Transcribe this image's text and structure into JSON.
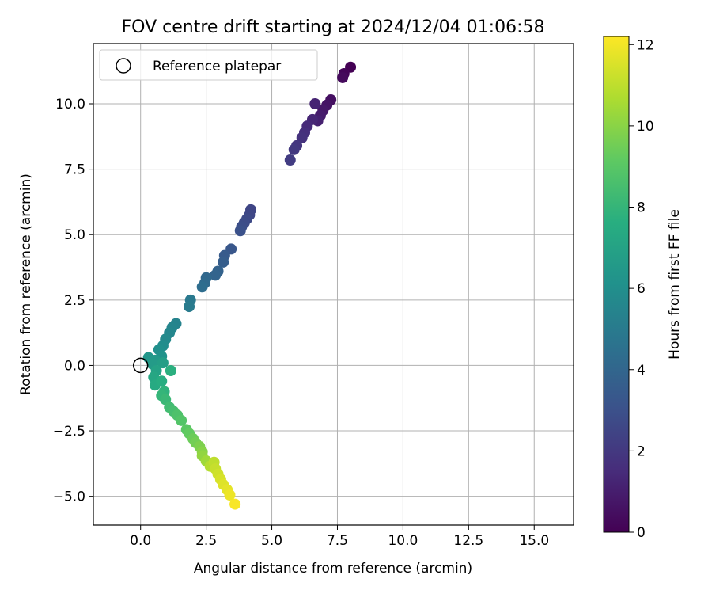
{
  "chart_data": {
    "type": "scatter",
    "title": "FOV centre drift starting at 2024/12/04 01:06:58",
    "xlabel": "Angular distance from reference (arcmin)",
    "ylabel": "Rotation from reference (arcmin)",
    "xlim": [
      -1.8,
      16.5
    ],
    "ylim": [
      -6.1,
      12.3
    ],
    "xticks": [
      0.0,
      2.5,
      5.0,
      7.5,
      10.0,
      12.5,
      15.0
    ],
    "xtick_labels": [
      "0.0",
      "2.5",
      "5.0",
      "7.5",
      "10.0",
      "12.5",
      "15.0"
    ],
    "yticks": [
      -5.0,
      -2.5,
      0.0,
      2.5,
      5.0,
      7.5,
      10.0
    ],
    "ytick_labels": [
      "−5.0",
      "−2.5",
      "0.0",
      "2.5",
      "5.0",
      "7.5",
      "10.0"
    ],
    "grid": true,
    "legend": {
      "placement": "upper-left",
      "entries": [
        "Reference platepar"
      ]
    },
    "reference_point": {
      "x": 0.0,
      "y": 0.0
    },
    "colorbar": {
      "label": "Hours from first FF file",
      "colormap": "viridis",
      "range": [
        0,
        12.2
      ],
      "ticks": [
        0,
        2,
        4,
        6,
        8,
        10,
        12
      ],
      "tick_labels": [
        "0",
        "2",
        "4",
        "6",
        "8",
        "10",
        "12"
      ]
    },
    "series": [
      {
        "points": [
          {
            "x": 8.0,
            "y": 11.4,
            "t": 0.0
          },
          {
            "x": 7.75,
            "y": 11.15,
            "t": 0.15
          },
          {
            "x": 7.7,
            "y": 11.0,
            "t": 0.3
          },
          {
            "x": 7.25,
            "y": 10.15,
            "t": 0.5
          },
          {
            "x": 7.1,
            "y": 9.95,
            "t": 0.65
          },
          {
            "x": 6.95,
            "y": 9.75,
            "t": 0.8
          },
          {
            "x": 6.85,
            "y": 9.55,
            "t": 0.95
          },
          {
            "x": 6.75,
            "y": 9.35,
            "t": 1.1
          },
          {
            "x": 6.65,
            "y": 10.0,
            "t": 1.2
          },
          {
            "x": 6.55,
            "y": 9.4,
            "t": 1.3
          },
          {
            "x": 6.35,
            "y": 9.15,
            "t": 1.45
          },
          {
            "x": 6.25,
            "y": 8.9,
            "t": 1.6
          },
          {
            "x": 6.15,
            "y": 8.7,
            "t": 1.75
          },
          {
            "x": 5.95,
            "y": 8.4,
            "t": 1.9
          },
          {
            "x": 5.85,
            "y": 8.25,
            "t": 2.0
          },
          {
            "x": 5.7,
            "y": 7.85,
            "t": 2.15
          },
          {
            "x": 4.2,
            "y": 5.95,
            "t": 2.5
          },
          {
            "x": 4.15,
            "y": 5.75,
            "t": 2.6
          },
          {
            "x": 4.05,
            "y": 5.6,
            "t": 2.7
          },
          {
            "x": 3.95,
            "y": 5.45,
            "t": 2.8
          },
          {
            "x": 3.85,
            "y": 5.3,
            "t": 2.9
          },
          {
            "x": 3.8,
            "y": 5.15,
            "t": 3.0
          },
          {
            "x": 3.45,
            "y": 4.45,
            "t": 3.3
          },
          {
            "x": 3.2,
            "y": 4.2,
            "t": 3.5
          },
          {
            "x": 3.15,
            "y": 3.95,
            "t": 3.6
          },
          {
            "x": 2.95,
            "y": 3.6,
            "t": 3.8
          },
          {
            "x": 2.85,
            "y": 3.45,
            "t": 3.9
          },
          {
            "x": 2.5,
            "y": 3.35,
            "t": 4.1
          },
          {
            "x": 2.45,
            "y": 3.15,
            "t": 4.2
          },
          {
            "x": 2.35,
            "y": 3.0,
            "t": 4.35
          },
          {
            "x": 1.9,
            "y": 2.5,
            "t": 4.9
          },
          {
            "x": 1.85,
            "y": 2.25,
            "t": 5.0
          },
          {
            "x": 1.35,
            "y": 1.6,
            "t": 5.4
          },
          {
            "x": 1.2,
            "y": 1.45,
            "t": 5.5
          },
          {
            "x": 1.1,
            "y": 1.25,
            "t": 5.6
          },
          {
            "x": 0.95,
            "y": 1.0,
            "t": 5.75
          },
          {
            "x": 0.85,
            "y": 0.75,
            "t": 5.9
          },
          {
            "x": 0.7,
            "y": 0.6,
            "t": 6.05
          },
          {
            "x": 0.8,
            "y": 0.35,
            "t": 6.2
          },
          {
            "x": 0.3,
            "y": 0.3,
            "t": 6.35
          },
          {
            "x": 0.55,
            "y": 0.2,
            "t": 6.5
          },
          {
            "x": 0.45,
            "y": 0.05,
            "t": 6.65
          },
          {
            "x": 0.85,
            "y": 0.1,
            "t": 6.8
          },
          {
            "x": 0.6,
            "y": -0.2,
            "t": 7.0
          },
          {
            "x": 0.5,
            "y": -0.45,
            "t": 7.2
          },
          {
            "x": 0.55,
            "y": -0.75,
            "t": 7.4
          },
          {
            "x": 0.8,
            "y": -0.6,
            "t": 7.55
          },
          {
            "x": 1.15,
            "y": -0.2,
            "t": 7.7
          },
          {
            "x": 0.9,
            "y": -1.0,
            "t": 7.85
          },
          {
            "x": 0.8,
            "y": -1.15,
            "t": 8.0
          },
          {
            "x": 0.95,
            "y": -1.3,
            "t": 8.15
          },
          {
            "x": 1.1,
            "y": -1.6,
            "t": 8.35
          },
          {
            "x": 1.25,
            "y": -1.75,
            "t": 8.5
          },
          {
            "x": 1.4,
            "y": -1.9,
            "t": 8.7
          },
          {
            "x": 1.55,
            "y": -2.1,
            "t": 8.85
          },
          {
            "x": 1.75,
            "y": -2.45,
            "t": 9.05
          },
          {
            "x": 1.85,
            "y": -2.6,
            "t": 9.2
          },
          {
            "x": 2.0,
            "y": -2.8,
            "t": 9.4
          },
          {
            "x": 2.1,
            "y": -2.95,
            "t": 9.55
          },
          {
            "x": 2.25,
            "y": -3.1,
            "t": 9.75
          },
          {
            "x": 2.35,
            "y": -3.3,
            "t": 9.95
          },
          {
            "x": 2.35,
            "y": -3.45,
            "t": 10.15
          },
          {
            "x": 2.5,
            "y": -3.65,
            "t": 10.4
          },
          {
            "x": 2.65,
            "y": -3.85,
            "t": 10.8
          },
          {
            "x": 2.8,
            "y": -3.7,
            "t": 11.0
          },
          {
            "x": 2.85,
            "y": -3.95,
            "t": 11.15
          },
          {
            "x": 2.95,
            "y": -4.15,
            "t": 11.3
          },
          {
            "x": 3.05,
            "y": -4.35,
            "t": 11.45
          },
          {
            "x": 3.15,
            "y": -4.55,
            "t": 11.6
          },
          {
            "x": 3.3,
            "y": -4.75,
            "t": 11.75
          },
          {
            "x": 3.4,
            "y": -4.95,
            "t": 11.9
          },
          {
            "x": 3.6,
            "y": -5.3,
            "t": 12.1
          }
        ]
      }
    ]
  }
}
